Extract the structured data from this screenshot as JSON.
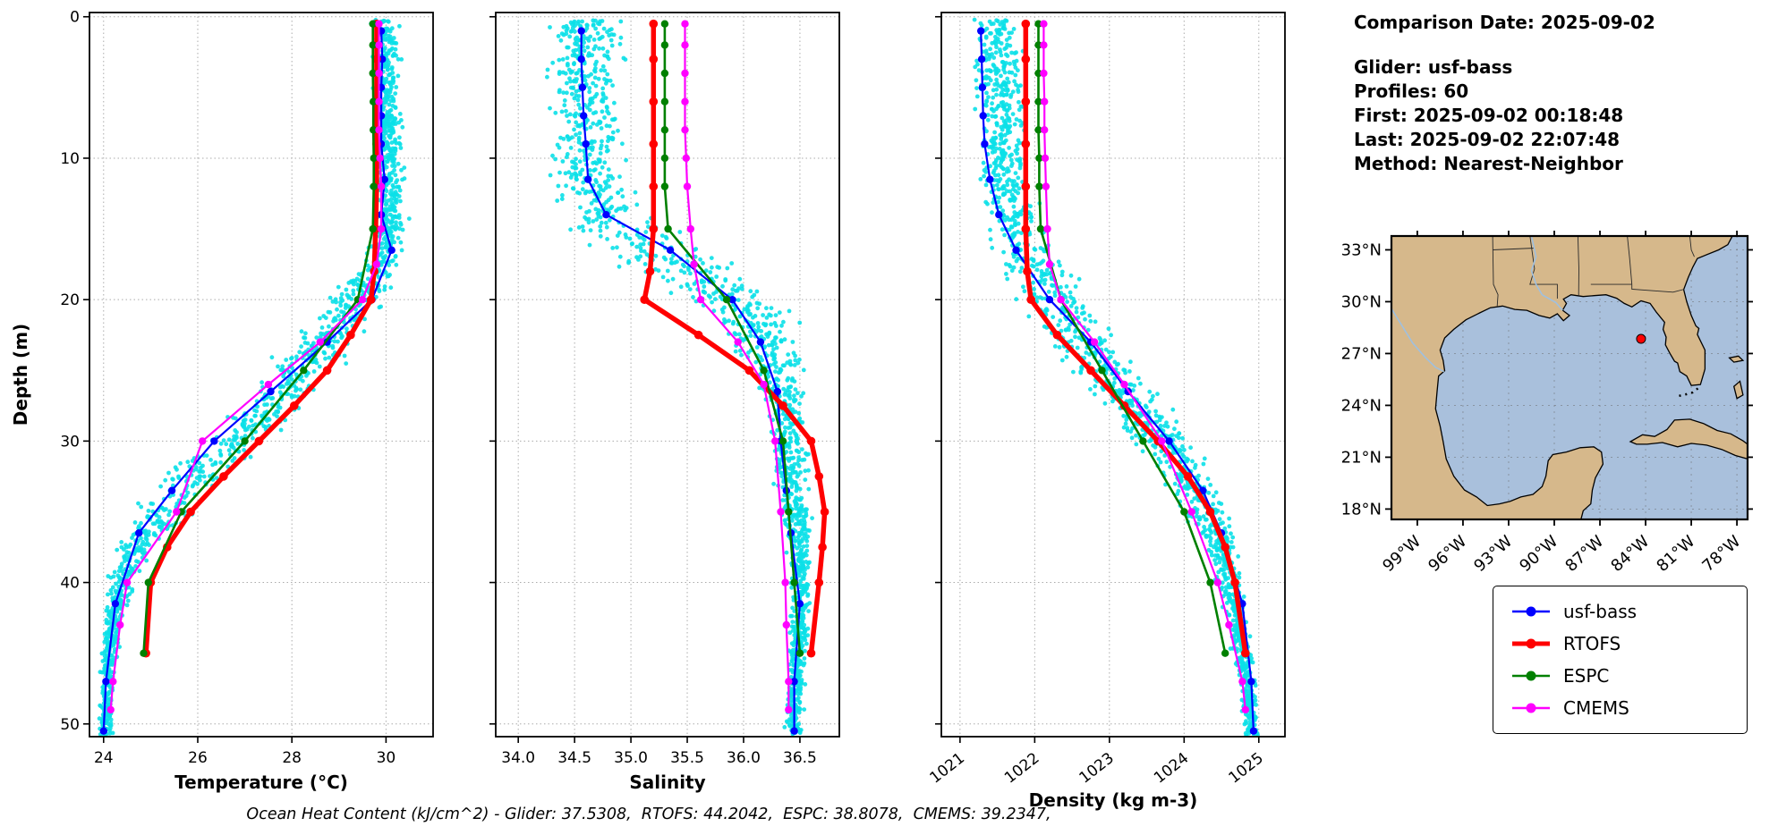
{
  "info_panel": {
    "comparison_date": "Comparison Date: 2025-09-02",
    "glider": "Glider: usf-bass",
    "profiles": "Profiles: 60",
    "first": "First: 2025-09-02 00:18:48",
    "last": "Last: 2025-09-02 22:07:48",
    "method": "Method: Nearest-Neighbor"
  },
  "footer": {
    "ohc_text": "Ocean Heat Content (kJ/cm^2) - Glider: 37.5308,  RTOFS: 44.2042,  ESPC: 38.8078,  CMEMS: 39.2347,"
  },
  "ocean_heat_content": {
    "glider": 37.5308,
    "rtofs": 44.2042,
    "espc": 38.8078,
    "cmems": 39.2347
  },
  "legend": {
    "items": [
      {
        "label": "usf-bass",
        "color": "#0000ff"
      },
      {
        "label": "RTOFS",
        "color": "#ff0000"
      },
      {
        "label": "ESPC",
        "color": "#008000"
      },
      {
        "label": "CMEMS",
        "color": "#ff00ff"
      }
    ]
  },
  "map": {
    "lat_labels": [
      "33°N",
      "30°N",
      "27°N",
      "24°N",
      "21°N",
      "18°N"
    ],
    "lat_ticks": [
      33,
      30,
      27,
      24,
      21,
      18
    ],
    "lon_labels": [
      "99°W",
      "96°W",
      "93°W",
      "90°W",
      "87°W",
      "84°W",
      "81°W",
      "78°W"
    ],
    "lon_ticks": [
      -99,
      -96,
      -93,
      -90,
      -87,
      -84,
      -81,
      -78
    ],
    "extent": {
      "lon_min": -100.7,
      "lon_max": -77.3,
      "lat_min": 17.4,
      "lat_max": 33.8
    },
    "marker": {
      "lon": -84.3,
      "lat": 27.85,
      "color": "#ff0000"
    },
    "land_color": "#d6b88b",
    "water_color": "#a9c0dc"
  },
  "chart_data": [
    {
      "type": "scatter",
      "name": "temperature",
      "xlabel": "Temperature (°C)",
      "ylabel": "Depth (m)",
      "xlim": [
        23.7,
        31.0
      ],
      "xticks": [
        24,
        26,
        28,
        30
      ],
      "xtick_labels": [
        "24",
        "26",
        "28",
        "30"
      ],
      "ylim": [
        -0.3,
        50.9
      ],
      "yticks": [
        0,
        10,
        20,
        30,
        40,
        50
      ],
      "ytick_labels": [
        "0",
        "10",
        "20",
        "30",
        "40",
        "50"
      ],
      "show_ylabels": true,
      "rotate_xtick_labels": false,
      "scatter": {
        "name": "glider-raw-points",
        "color": "#0be0e8",
        "n_points": 1500,
        "seed": 11,
        "envelope": [
          [
            0,
            30.0,
            0.4
          ],
          [
            4,
            30.0,
            0.38
          ],
          [
            8,
            30.05,
            0.38
          ],
          [
            12,
            30.05,
            0.4
          ],
          [
            15,
            30.1,
            0.45
          ],
          [
            17,
            29.95,
            0.55
          ],
          [
            19,
            29.6,
            0.7
          ],
          [
            22,
            28.9,
            0.85
          ],
          [
            25,
            28.2,
            0.9
          ],
          [
            28,
            27.4,
            0.95
          ],
          [
            31,
            26.5,
            0.95
          ],
          [
            34,
            25.5,
            0.85
          ],
          [
            37,
            24.8,
            0.6
          ],
          [
            40,
            24.35,
            0.4
          ],
          [
            43,
            24.2,
            0.28
          ],
          [
            46,
            24.1,
            0.2
          ],
          [
            50,
            24.05,
            0.18
          ]
        ]
      },
      "series": [
        {
          "name": "usf-bass",
          "color": "#0000ff",
          "lw": 2.2,
          "marker_r": 4.2,
          "depth": [
            1,
            3,
            5,
            7,
            9,
            11.5,
            14,
            16.5,
            20,
            23,
            26.5,
            30,
            33.5,
            36.5,
            41.5,
            47,
            50.5
          ],
          "values": [
            29.9,
            29.92,
            29.9,
            29.9,
            29.9,
            29.97,
            29.9,
            30.12,
            29.7,
            28.75,
            27.55,
            26.35,
            25.45,
            24.75,
            24.25,
            24.05,
            24.0
          ]
        },
        {
          "name": "RTOFS",
          "color": "#ff0000",
          "lw": 5.5,
          "marker_r": 4.8,
          "depth": [
            0.5,
            3,
            6,
            9,
            12,
            15,
            18,
            20,
            22.5,
            25,
            27.5,
            30,
            32.5,
            35,
            37.5,
            40,
            45
          ],
          "values": [
            29.8,
            29.8,
            29.8,
            29.8,
            29.8,
            29.78,
            29.75,
            29.68,
            29.25,
            28.75,
            28.05,
            27.3,
            26.55,
            25.85,
            25.35,
            25.0,
            24.9
          ]
        },
        {
          "name": "ESPC",
          "color": "#008000",
          "lw": 2.6,
          "marker_r": 4.2,
          "depth": [
            0.5,
            2,
            4,
            6,
            8,
            10,
            12,
            15,
            20,
            25,
            30,
            35,
            40,
            45
          ],
          "values": [
            29.72,
            29.72,
            29.72,
            29.73,
            29.73,
            29.74,
            29.74,
            29.72,
            29.4,
            28.25,
            27.0,
            25.65,
            24.95,
            24.85
          ]
        },
        {
          "name": "CMEMS",
          "color": "#ff00ff",
          "lw": 2.2,
          "marker_r": 4.2,
          "depth": [
            0.5,
            2,
            4,
            6,
            8,
            10,
            12,
            15,
            17.5,
            20,
            23,
            26,
            30,
            35,
            40,
            43,
            47,
            49
          ],
          "values": [
            29.85,
            29.85,
            29.85,
            29.85,
            29.85,
            29.87,
            29.9,
            29.9,
            29.8,
            29.5,
            28.6,
            27.5,
            26.1,
            25.55,
            24.5,
            24.35,
            24.2,
            24.15
          ]
        }
      ]
    },
    {
      "type": "scatter",
      "name": "salinity",
      "xlabel": "Salinity",
      "xlim": [
        33.8,
        36.85
      ],
      "xticks": [
        34.0,
        34.5,
        35.0,
        35.5,
        36.0,
        36.5
      ],
      "xtick_labels": [
        "34.0",
        "34.5",
        "35.0",
        "35.5",
        "36.0",
        "36.5"
      ],
      "ylim": [
        -0.3,
        50.9
      ],
      "yticks": [
        0,
        10,
        20,
        30,
        40,
        50
      ],
      "ytick_labels": [
        "0",
        "10",
        "20",
        "30",
        "40",
        "50"
      ],
      "show_ylabels": false,
      "rotate_xtick_labels": false,
      "scatter": {
        "name": "glider-raw-points",
        "color": "#0be0e8",
        "n_points": 1500,
        "seed": 22,
        "envelope": [
          [
            0,
            34.6,
            0.45
          ],
          [
            4,
            34.6,
            0.42
          ],
          [
            8,
            34.62,
            0.42
          ],
          [
            12,
            34.65,
            0.45
          ],
          [
            15,
            34.9,
            0.6
          ],
          [
            17,
            35.3,
            0.65
          ],
          [
            19,
            35.7,
            0.6
          ],
          [
            21,
            36.0,
            0.5
          ],
          [
            23,
            36.2,
            0.4
          ],
          [
            25,
            36.3,
            0.3
          ],
          [
            28,
            36.38,
            0.25
          ],
          [
            31,
            36.42,
            0.2
          ],
          [
            34,
            36.45,
            0.18
          ],
          [
            38,
            36.5,
            0.14
          ],
          [
            42,
            36.5,
            0.12
          ],
          [
            46,
            36.47,
            0.1
          ],
          [
            50,
            36.45,
            0.1
          ]
        ]
      },
      "series": [
        {
          "name": "usf-bass",
          "color": "#0000ff",
          "lw": 2.2,
          "marker_r": 4.2,
          "depth": [
            1,
            3,
            5,
            7,
            9,
            11.5,
            14,
            16.5,
            20,
            23,
            26.5,
            30,
            33.5,
            36.5,
            41.5,
            47,
            50.5
          ],
          "values": [
            34.56,
            34.56,
            34.57,
            34.58,
            34.6,
            34.62,
            34.78,
            35.35,
            35.9,
            36.15,
            36.3,
            36.33,
            36.38,
            36.42,
            36.5,
            36.45,
            36.45
          ]
        },
        {
          "name": "RTOFS",
          "color": "#ff0000",
          "lw": 5.5,
          "marker_r": 4.8,
          "depth": [
            0.5,
            3,
            6,
            9,
            12,
            15,
            18,
            20,
            22.5,
            25,
            27.5,
            30,
            32.5,
            35,
            37.5,
            40,
            45
          ],
          "values": [
            35.2,
            35.2,
            35.2,
            35.2,
            35.2,
            35.2,
            35.17,
            35.12,
            35.6,
            36.05,
            36.35,
            36.6,
            36.67,
            36.72,
            36.7,
            36.67,
            36.6
          ]
        },
        {
          "name": "ESPC",
          "color": "#008000",
          "lw": 2.6,
          "marker_r": 4.2,
          "depth": [
            0.5,
            2,
            4,
            6,
            8,
            10,
            12,
            15,
            20,
            25,
            30,
            35,
            40,
            45
          ],
          "values": [
            35.3,
            35.3,
            35.3,
            35.3,
            35.3,
            35.3,
            35.3,
            35.33,
            35.85,
            36.18,
            36.35,
            36.4,
            36.45,
            36.5
          ]
        },
        {
          "name": "CMEMS",
          "color": "#ff00ff",
          "lw": 2.2,
          "marker_r": 4.2,
          "depth": [
            0.5,
            2,
            4,
            6,
            8,
            10,
            12,
            15,
            17.5,
            20,
            23,
            26,
            30,
            35,
            40,
            43,
            47,
            49
          ],
          "values": [
            35.48,
            35.48,
            35.48,
            35.48,
            35.48,
            35.49,
            35.5,
            35.53,
            35.56,
            35.62,
            35.95,
            36.18,
            36.28,
            36.33,
            36.37,
            36.38,
            36.4,
            36.4
          ]
        }
      ]
    },
    {
      "type": "scatter",
      "name": "density",
      "xlabel": "Density (kg m-3)",
      "xlim": [
        1020.75,
        1025.35
      ],
      "xticks": [
        1021,
        1022,
        1023,
        1024,
        1025
      ],
      "xtick_labels": [
        "1021",
        "1022",
        "1023",
        "1024",
        "1025"
      ],
      "ylim": [
        -0.3,
        50.9
      ],
      "yticks": [
        0,
        10,
        20,
        30,
        40,
        50
      ],
      "ytick_labels": [
        "0",
        "10",
        "20",
        "30",
        "40",
        "50"
      ],
      "show_ylabels": false,
      "rotate_xtick_labels": true,
      "scatter": {
        "name": "glider-raw-points",
        "color": "#0be0e8",
        "n_points": 1500,
        "seed": 33,
        "envelope": [
          [
            0,
            1021.5,
            0.45
          ],
          [
            4,
            1021.5,
            0.42
          ],
          [
            8,
            1021.55,
            0.42
          ],
          [
            12,
            1021.6,
            0.45
          ],
          [
            15,
            1021.75,
            0.5
          ],
          [
            17,
            1021.9,
            0.55
          ],
          [
            19,
            1022.15,
            0.6
          ],
          [
            22,
            1022.5,
            0.6
          ],
          [
            25,
            1022.95,
            0.6
          ],
          [
            28,
            1023.4,
            0.55
          ],
          [
            31,
            1023.85,
            0.5
          ],
          [
            34,
            1024.2,
            0.4
          ],
          [
            37,
            1024.45,
            0.32
          ],
          [
            40,
            1024.6,
            0.25
          ],
          [
            43,
            1024.72,
            0.2
          ],
          [
            46,
            1024.82,
            0.15
          ],
          [
            50,
            1024.9,
            0.12
          ]
        ]
      },
      "series": [
        {
          "name": "usf-bass",
          "color": "#0000ff",
          "lw": 2.2,
          "marker_r": 4.2,
          "depth": [
            1,
            3,
            5,
            7,
            9,
            11.5,
            14,
            16.5,
            20,
            23,
            26.5,
            30,
            33.5,
            36.5,
            41.5,
            47,
            50.5
          ],
          "values": [
            1021.28,
            1021.29,
            1021.3,
            1021.31,
            1021.33,
            1021.4,
            1021.52,
            1021.75,
            1022.2,
            1022.75,
            1023.25,
            1023.8,
            1024.25,
            1024.5,
            1024.78,
            1024.9,
            1024.93
          ]
        },
        {
          "name": "RTOFS",
          "color": "#ff0000",
          "lw": 5.5,
          "marker_r": 4.8,
          "depth": [
            0.5,
            3,
            6,
            9,
            12,
            15,
            18,
            20,
            22.5,
            25,
            27.5,
            30,
            32.5,
            35,
            37.5,
            40,
            45
          ],
          "values": [
            1021.88,
            1021.88,
            1021.88,
            1021.88,
            1021.88,
            1021.88,
            1021.9,
            1021.95,
            1022.3,
            1022.75,
            1023.2,
            1023.65,
            1024.05,
            1024.35,
            1024.55,
            1024.68,
            1024.82
          ]
        },
        {
          "name": "ESPC",
          "color": "#008000",
          "lw": 2.6,
          "marker_r": 4.2,
          "depth": [
            0.5,
            2,
            4,
            6,
            8,
            10,
            12,
            15,
            20,
            25,
            30,
            35,
            40,
            45
          ],
          "values": [
            1022.05,
            1022.05,
            1022.05,
            1022.05,
            1022.05,
            1022.06,
            1022.06,
            1022.08,
            1022.35,
            1022.9,
            1023.45,
            1024.0,
            1024.35,
            1024.55
          ]
        },
        {
          "name": "CMEMS",
          "color": "#ff00ff",
          "lw": 2.2,
          "marker_r": 4.2,
          "depth": [
            0.5,
            2,
            4,
            6,
            8,
            10,
            12,
            15,
            17.5,
            20,
            23,
            26,
            30,
            35,
            40,
            43,
            47,
            49
          ],
          "values": [
            1022.12,
            1022.12,
            1022.12,
            1022.13,
            1022.13,
            1022.14,
            1022.15,
            1022.17,
            1022.2,
            1022.35,
            1022.8,
            1023.2,
            1023.7,
            1024.1,
            1024.45,
            1024.6,
            1024.78,
            1024.82
          ]
        }
      ]
    }
  ]
}
